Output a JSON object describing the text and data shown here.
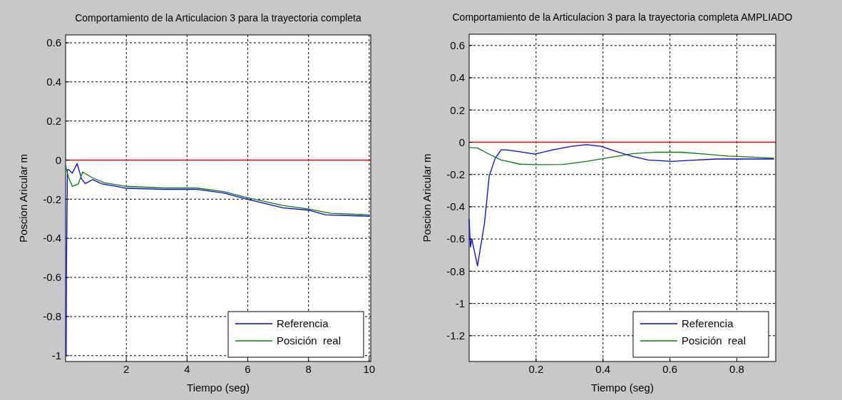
{
  "chart_data": [
    {
      "type": "line",
      "title": "Comportamiento de la Articulacion 3 para la trayectoria completa",
      "xlabel": "Tiempo (seg)",
      "ylabel": "Poscion Aricular m",
      "xlim": [
        0,
        10.05
      ],
      "xticks": [
        2,
        4,
        6,
        8,
        10
      ],
      "ylim": [
        -1.03,
        0.64
      ],
      "yticks": [
        -1,
        -0.8,
        -0.6,
        -0.4,
        -0.2,
        0,
        0.2,
        0.4,
        0.6
      ],
      "grid": true,
      "legend": "bottom right",
      "line_style": "solid",
      "marker": "none",
      "ref_lines": [
        {
          "axis": "y",
          "value": 0,
          "color": "#ff0000"
        }
      ],
      "series": [
        {
          "name": "Referencia",
          "color": "#0000ff",
          "x": [
            0.02,
            0.03,
            0.06,
            0.1,
            0.22,
            0.38,
            0.53,
            0.65,
            0.89,
            1.2,
            1.67,
            2.0,
            3.24,
            4.33,
            5.2,
            6.0,
            7.15,
            8.0,
            8.57,
            10
          ],
          "values": [
            -1.0,
            -0.55,
            -0.05,
            -0.049,
            -0.067,
            -0.018,
            -0.098,
            -0.12,
            -0.1,
            -0.122,
            -0.134,
            -0.144,
            -0.15,
            -0.15,
            -0.168,
            -0.201,
            -0.244,
            -0.256,
            -0.28,
            -0.287
          ]
        },
        {
          "name": "Posición  real",
          "color": "#008000",
          "x": [
            0,
            0.1,
            0.22,
            0.42,
            0.56,
            0.89,
            1.28,
            2.0,
            3.24,
            4.33,
            5.2,
            6.0,
            7.15,
            8.0,
            8.72,
            10
          ],
          "values": [
            -0.03,
            -0.09,
            -0.134,
            -0.122,
            -0.061,
            -0.091,
            -0.116,
            -0.134,
            -0.143,
            -0.143,
            -0.161,
            -0.193,
            -0.232,
            -0.25,
            -0.272,
            -0.28
          ]
        }
      ]
    },
    {
      "type": "line",
      "title": "Comportamiento de la Articulacion 3 para la trayectoria completa AMPLIADO",
      "xlabel": "Tiempo (seg)",
      "ylabel": "Poscion Aricular m",
      "xlim": [
        0,
        0.916
      ],
      "xticks": [
        0.2,
        0.4,
        0.6,
        0.8
      ],
      "ylim": [
        -1.36,
        0.67
      ],
      "yticks": [
        -1.2,
        -1,
        -0.8,
        -0.6,
        -0.4,
        -0.2,
        0,
        0.2,
        0.4,
        0.6
      ],
      "grid": true,
      "legend": "bottom right",
      "line_style": "solid",
      "marker": "none",
      "ref_lines": [
        {
          "axis": "y",
          "value": 0,
          "color": "#ff0000"
        }
      ],
      "series": [
        {
          "name": "Referencia",
          "color": "#0000ff",
          "x": [
            0,
            0.004,
            0.008,
            0.025,
            0.046,
            0.06,
            0.078,
            0.096,
            0.11,
            0.152,
            0.196,
            0.25,
            0.308,
            0.35,
            0.393,
            0.436,
            0.49,
            0.535,
            0.606,
            0.67,
            0.74,
            0.811,
            0.91
          ],
          "values": [
            -0.478,
            -0.65,
            -0.6,
            -0.767,
            -0.5,
            -0.21,
            -0.099,
            -0.047,
            -0.047,
            -0.059,
            -0.074,
            -0.047,
            -0.025,
            -0.015,
            -0.025,
            -0.055,
            -0.089,
            -0.11,
            -0.119,
            -0.111,
            -0.104,
            -0.104,
            -0.104
          ]
        },
        {
          "name": "Posición  real",
          "color": "#008000",
          "x": [
            0,
            0.025,
            0.06,
            0.096,
            0.152,
            0.196,
            0.28,
            0.35,
            0.42,
            0.49,
            0.563,
            0.634,
            0.705,
            0.776,
            0.847,
            0.91
          ],
          "values": [
            -0.033,
            -0.036,
            -0.074,
            -0.11,
            -0.136,
            -0.139,
            -0.138,
            -0.119,
            -0.095,
            -0.07,
            -0.061,
            -0.062,
            -0.074,
            -0.086,
            -0.092,
            -0.099
          ]
        }
      ]
    }
  ]
}
